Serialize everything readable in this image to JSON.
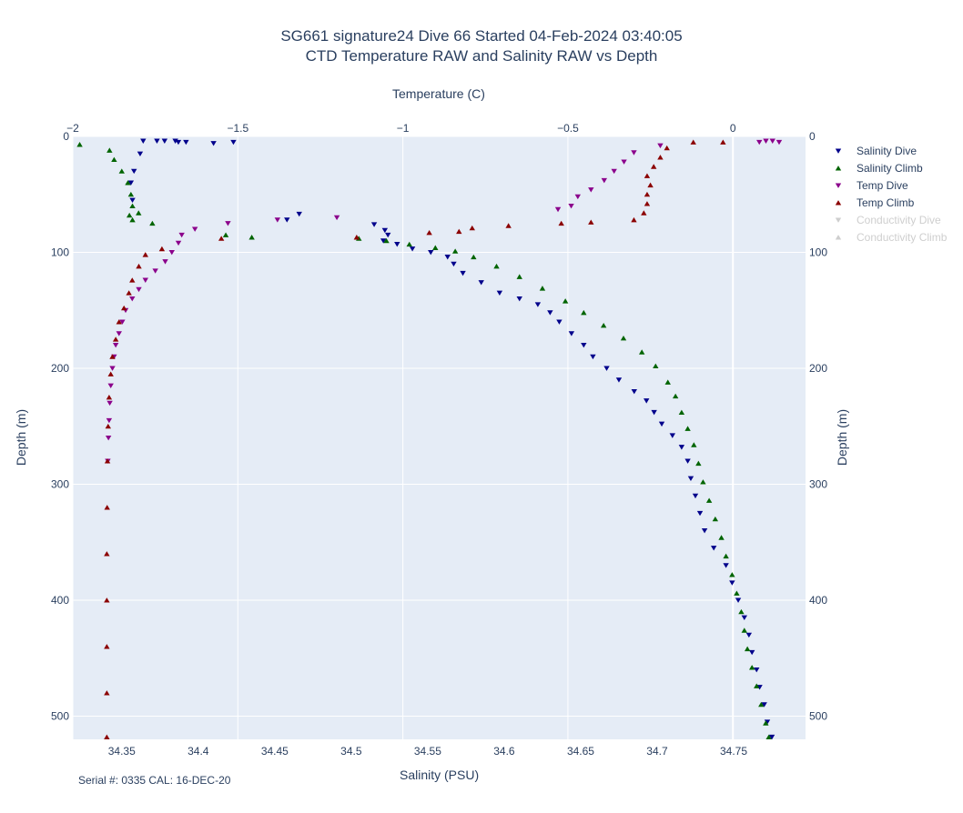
{
  "title_line1": "SG661 signature24 Dive 66 Started 04-Feb-2024 03:40:05",
  "title_line2": "CTD Temperature RAW and Salinity RAW vs Depth",
  "footnote": "Serial #: 0335  CAL: 16-DEC-20",
  "colors": {
    "salinity_dive": "#00008b",
    "salinity_climb": "#006400",
    "temp_dive": "#8b008b",
    "temp_climb": "#8b0000",
    "conductivity_dive": "#9e9e9e",
    "conductivity_climb": "#9e9e9e",
    "plot_bg": "#e5ecf6",
    "grid": "#ffffff"
  },
  "chart_data": {
    "type": "scatter",
    "xlabel_top": "Temperature (C)",
    "xlabel_bottom": "Salinity (PSU)",
    "ylabel_left": "Depth (m)",
    "ylabel_right": "Depth (m)",
    "temperature_axis": {
      "range": [
        -2,
        0.22
      ],
      "ticks": [
        -2,
        -1.5,
        -1,
        -0.5,
        0
      ],
      "tick_labels": [
        "−2",
        "−1.5",
        "−1",
        "−0.5",
        "0"
      ]
    },
    "salinity_axis": {
      "range": [
        34.318,
        34.797
      ],
      "ticks": [
        34.35,
        34.4,
        34.45,
        34.5,
        34.55,
        34.6,
        34.65,
        34.7,
        34.75
      ],
      "tick_labels": [
        "34.35",
        "34.4",
        "34.45",
        "34.5",
        "34.55",
        "34.6",
        "34.65",
        "34.7",
        "34.75"
      ]
    },
    "depth_axis": {
      "range": [
        0,
        520
      ],
      "reversed": true,
      "ticks": [
        0,
        100,
        200,
        300,
        400,
        500
      ],
      "tick_labels": [
        "0",
        "100",
        "200",
        "300",
        "400",
        "500"
      ]
    },
    "grid": true,
    "legend_position": "right",
    "series": [
      {
        "name": "Salinity Dive",
        "axis": "salinity",
        "marker": "triangle-down",
        "visible": true,
        "points": [
          [
            34.364,
            4
          ],
          [
            34.373,
            4
          ],
          [
            34.378,
            4
          ],
          [
            34.385,
            4
          ],
          [
            34.387,
            5
          ],
          [
            34.392,
            5
          ],
          [
            34.41,
            6
          ],
          [
            34.423,
            5
          ],
          [
            34.362,
            15
          ],
          [
            34.358,
            30
          ],
          [
            34.356,
            40
          ],
          [
            34.357,
            55
          ],
          [
            34.458,
            72
          ],
          [
            34.466,
            67
          ],
          [
            34.515,
            76
          ],
          [
            34.522,
            81
          ],
          [
            34.524,
            85
          ],
          [
            34.521,
            90
          ],
          [
            34.53,
            93
          ],
          [
            34.54,
            97
          ],
          [
            34.552,
            100
          ],
          [
            34.563,
            104
          ],
          [
            34.567,
            110
          ],
          [
            34.573,
            118
          ],
          [
            34.585,
            126
          ],
          [
            34.597,
            135
          ],
          [
            34.61,
            140
          ],
          [
            34.622,
            145
          ],
          [
            34.63,
            152
          ],
          [
            34.636,
            160
          ],
          [
            34.644,
            170
          ],
          [
            34.652,
            180
          ],
          [
            34.658,
            190
          ],
          [
            34.667,
            200
          ],
          [
            34.675,
            210
          ],
          [
            34.685,
            220
          ],
          [
            34.693,
            228
          ],
          [
            34.698,
            238
          ],
          [
            34.703,
            248
          ],
          [
            34.71,
            258
          ],
          [
            34.716,
            268
          ],
          [
            34.72,
            280
          ],
          [
            34.722,
            295
          ],
          [
            34.725,
            310
          ],
          [
            34.728,
            325
          ],
          [
            34.731,
            340
          ],
          [
            34.737,
            355
          ],
          [
            34.745,
            370
          ],
          [
            34.749,
            385
          ],
          [
            34.753,
            400
          ],
          [
            34.757,
            415
          ],
          [
            34.76,
            430
          ],
          [
            34.762,
            445
          ],
          [
            34.765,
            460
          ],
          [
            34.767,
            475
          ],
          [
            34.77,
            490
          ],
          [
            34.772,
            505
          ],
          [
            34.775,
            518
          ]
        ]
      },
      {
        "name": "Salinity Climb",
        "axis": "salinity",
        "marker": "triangle-up",
        "visible": true,
        "points": [
          [
            34.3225,
            7
          ],
          [
            34.357,
            72
          ],
          [
            34.361,
            66
          ],
          [
            34.342,
            12
          ],
          [
            34.345,
            20
          ],
          [
            34.35,
            30
          ],
          [
            34.354,
            40
          ],
          [
            34.356,
            50
          ],
          [
            34.357,
            60
          ],
          [
            34.355,
            68
          ],
          [
            34.37,
            75
          ],
          [
            34.418,
            85
          ],
          [
            34.435,
            87
          ],
          [
            34.505,
            88
          ],
          [
            34.523,
            90
          ],
          [
            34.538,
            93
          ],
          [
            34.555,
            96
          ],
          [
            34.568,
            99
          ],
          [
            34.58,
            104
          ],
          [
            34.595,
            112
          ],
          [
            34.61,
            121
          ],
          [
            34.625,
            131
          ],
          [
            34.64,
            142
          ],
          [
            34.652,
            152
          ],
          [
            34.665,
            163
          ],
          [
            34.678,
            174
          ],
          [
            34.69,
            186
          ],
          [
            34.699,
            198
          ],
          [
            34.707,
            212
          ],
          [
            34.712,
            224
          ],
          [
            34.716,
            238
          ],
          [
            34.72,
            252
          ],
          [
            34.724,
            266
          ],
          [
            34.727,
            282
          ],
          [
            34.73,
            298
          ],
          [
            34.734,
            314
          ],
          [
            34.738,
            330
          ],
          [
            34.742,
            346
          ],
          [
            34.745,
            362
          ],
          [
            34.749,
            378
          ],
          [
            34.752,
            394
          ],
          [
            34.755,
            410
          ],
          [
            34.757,
            426
          ],
          [
            34.759,
            442
          ],
          [
            34.762,
            458
          ],
          [
            34.765,
            474
          ],
          [
            34.768,
            490
          ],
          [
            34.771,
            506
          ],
          [
            34.773,
            518
          ]
        ]
      },
      {
        "name": "Temp Dive",
        "axis": "temperature",
        "marker": "triangle-down",
        "visible": true,
        "points": [
          [
            0.08,
            5
          ],
          [
            0.1,
            4
          ],
          [
            0.12,
            4
          ],
          [
            0.14,
            5
          ],
          [
            -0.22,
            8
          ],
          [
            -0.3,
            14
          ],
          [
            -0.33,
            22
          ],
          [
            -0.36,
            30
          ],
          [
            -0.39,
            38
          ],
          [
            -0.43,
            46
          ],
          [
            -0.47,
            52
          ],
          [
            -0.49,
            60
          ],
          [
            -0.53,
            63
          ],
          [
            -1.2,
            70
          ],
          [
            -1.38,
            72
          ],
          [
            -1.53,
            75
          ],
          [
            -1.63,
            80
          ],
          [
            -1.67,
            85
          ],
          [
            -1.68,
            92
          ],
          [
            -1.7,
            100
          ],
          [
            -1.72,
            108
          ],
          [
            -1.75,
            116
          ],
          [
            -1.78,
            124
          ],
          [
            -1.8,
            132
          ],
          [
            -1.82,
            140
          ],
          [
            -1.84,
            150
          ],
          [
            -1.85,
            160
          ],
          [
            -1.86,
            170
          ],
          [
            -1.87,
            180
          ],
          [
            -1.875,
            190
          ],
          [
            -1.88,
            200
          ],
          [
            -1.885,
            215
          ],
          [
            -1.888,
            230
          ],
          [
            -1.89,
            245
          ],
          [
            -1.892,
            260
          ],
          [
            -1.894,
            280
          ]
        ]
      },
      {
        "name": "Temp Climb",
        "axis": "temperature",
        "marker": "triangle-up",
        "visible": true,
        "points": [
          [
            -0.03,
            5
          ],
          [
            -0.12,
            5
          ],
          [
            -0.2,
            10
          ],
          [
            -0.22,
            18
          ],
          [
            -0.24,
            26
          ],
          [
            -0.26,
            34
          ],
          [
            -0.25,
            42
          ],
          [
            -0.26,
            50
          ],
          [
            -0.26,
            58
          ],
          [
            -0.27,
            66
          ],
          [
            -0.3,
            72
          ],
          [
            -0.43,
            74
          ],
          [
            -0.52,
            75
          ],
          [
            -0.68,
            77
          ],
          [
            -0.79,
            79
          ],
          [
            -0.83,
            82
          ],
          [
            -0.92,
            83
          ],
          [
            -1.14,
            87
          ],
          [
            -1.55,
            88
          ],
          [
            -1.73,
            97
          ],
          [
            -1.78,
            102
          ],
          [
            -1.8,
            112
          ],
          [
            -1.82,
            124
          ],
          [
            -1.83,
            135
          ],
          [
            -1.845,
            148
          ],
          [
            -1.86,
            160
          ],
          [
            -1.87,
            175
          ],
          [
            -1.88,
            190
          ],
          [
            -1.885,
            205
          ],
          [
            -1.89,
            225
          ],
          [
            -1.893,
            250
          ],
          [
            -1.895,
            280
          ],
          [
            -1.896,
            320
          ],
          [
            -1.897,
            360
          ],
          [
            -1.897,
            400
          ],
          [
            -1.897,
            440
          ],
          [
            -1.897,
            480
          ],
          [
            -1.897,
            518
          ]
        ]
      },
      {
        "name": "Conductivity Dive",
        "axis": "none",
        "marker": "triangle-down",
        "visible": false,
        "points": []
      },
      {
        "name": "Conductivity Climb",
        "axis": "none",
        "marker": "triangle-up",
        "visible": false,
        "points": []
      }
    ]
  }
}
